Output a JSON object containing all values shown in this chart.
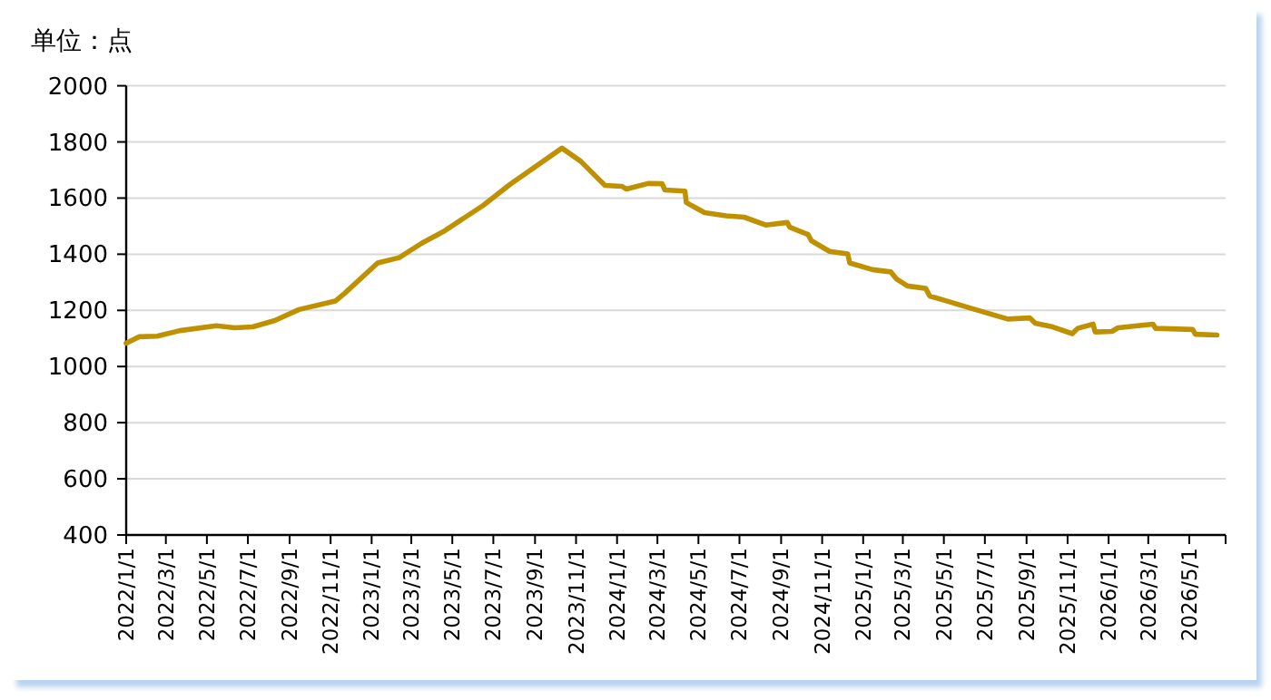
{
  "chart_data": {
    "type": "line",
    "ylabel": "单位：点",
    "grid": "y",
    "marker": "none",
    "line_style": "solid",
    "xlim": [
      "2022-01-01",
      "2026-06-24"
    ],
    "ylim": [
      400,
      2000
    ],
    "yticks": [
      400,
      600,
      800,
      1000,
      1200,
      1400,
      1600,
      1800,
      2000
    ],
    "xticks": [
      {
        "value": "2022-01-01",
        "label": "2022/1/1"
      },
      {
        "value": "2022-03-01",
        "label": "2022/3/1"
      },
      {
        "value": "2022-05-01",
        "label": "2022/5/1"
      },
      {
        "value": "2022-07-01",
        "label": "2022/7/1"
      },
      {
        "value": "2022-09-01",
        "label": "2022/9/1"
      },
      {
        "value": "2022-11-01",
        "label": "2022/11/1"
      },
      {
        "value": "2023-01-01",
        "label": "2023/1/1"
      },
      {
        "value": "2023-03-01",
        "label": "2023/3/1"
      },
      {
        "value": "2023-05-01",
        "label": "2023/5/1"
      },
      {
        "value": "2023-07-01",
        "label": "2023/7/1"
      },
      {
        "value": "2023-09-01",
        "label": "2023/9/1"
      },
      {
        "value": "2023-11-01",
        "label": "2023/11/1"
      },
      {
        "value": "2024-01-01",
        "label": "2024/1/1"
      },
      {
        "value": "2024-03-01",
        "label": "2024/3/1"
      },
      {
        "value": "2024-05-01",
        "label": "2024/5/1"
      },
      {
        "value": "2024-07-01",
        "label": "2024/7/1"
      },
      {
        "value": "2024-09-01",
        "label": "2024/9/1"
      },
      {
        "value": "2024-11-01",
        "label": "2024/11/1"
      },
      {
        "value": "2025-01-01",
        "label": "2025/1/1"
      },
      {
        "value": "2025-03-01",
        "label": "2025/3/1"
      },
      {
        "value": "2025-05-01",
        "label": "2025/5/1"
      },
      {
        "value": "2025-07-01",
        "label": "2025/7/1"
      },
      {
        "value": "2025-09-01",
        "label": "2025/9/1"
      },
      {
        "value": "2025-11-01",
        "label": "2025/11/1"
      },
      {
        "value": "2026-01-01",
        "label": "2026/1/1"
      },
      {
        "value": "2026-03-01",
        "label": "2026/3/1"
      },
      {
        "value": "2026-05-01",
        "label": "2026/5/1"
      }
    ],
    "series": [
      {
        "color": "#bf9000",
        "x": [
          "2022-01-01",
          "2022-01-20",
          "2022-02-16",
          "2022-03-22",
          "2022-05-15",
          "2022-06-11",
          "2022-07-08",
          "2022-08-10",
          "2022-09-15",
          "2022-11-08",
          "2022-11-22",
          "2023-01-10",
          "2023-02-11",
          "2023-03-17",
          "2023-04-18",
          "2023-06-16",
          "2023-07-26",
          "2023-10-11",
          "2023-11-08",
          "2023-12-14",
          "2024-01-08",
          "2024-01-15",
          "2024-02-16",
          "2024-03-08",
          "2024-03-12",
          "2024-04-11",
          "2024-04-13",
          "2024-05-10",
          "2024-06-11",
          "2024-07-08",
          "2024-08-09",
          "2024-09-10",
          "2024-09-14",
          "2024-10-11",
          "2024-10-16",
          "2024-11-12",
          "2024-12-09",
          "2024-12-12",
          "2025-01-15",
          "2025-02-11",
          "2025-02-20",
          "2025-03-08",
          "2025-04-04",
          "2025-04-10",
          "2025-05-06",
          "2025-06-11",
          "2025-08-04",
          "2025-09-06",
          "2025-09-14",
          "2025-10-07",
          "2025-11-08",
          "2025-11-16",
          "2025-12-09",
          "2025-12-12",
          "2026-01-06",
          "2026-01-15",
          "2026-03-08",
          "2026-03-12",
          "2026-05-06",
          "2026-05-10",
          "2026-06-11"
        ],
        "values": [
          1083,
          1106,
          1108,
          1128,
          1145,
          1138,
          1141,
          1164,
          1203,
          1233,
          1261,
          1369,
          1388,
          1440,
          1481,
          1574,
          1649,
          1778,
          1731,
          1645,
          1642,
          1632,
          1652,
          1651,
          1629,
          1625,
          1584,
          1548,
          1537,
          1532,
          1504,
          1513,
          1496,
          1470,
          1448,
          1410,
          1401,
          1369,
          1345,
          1337,
          1311,
          1287,
          1278,
          1251,
          1233,
          1207,
          1169,
          1173,
          1154,
          1143,
          1117,
          1136,
          1151,
          1123,
          1125,
          1138,
          1151,
          1136,
          1132,
          1115,
          1112
        ]
      }
    ]
  }
}
